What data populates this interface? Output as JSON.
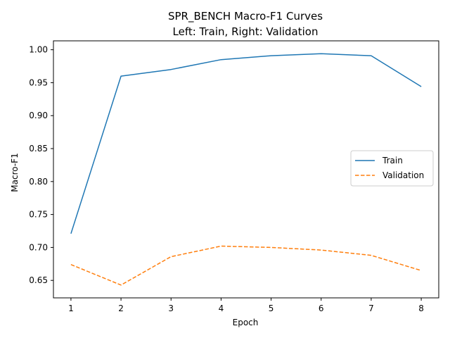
{
  "chart_data": {
    "type": "line",
    "title": "SPR_BENCH Macro-F1 Curves",
    "subtitle": "Left: Train, Right: Validation",
    "xlabel": "Epoch",
    "ylabel": "Macro-F1",
    "x": [
      1,
      2,
      3,
      4,
      5,
      6,
      7,
      8
    ],
    "xlim": [
      0.65,
      8.35
    ],
    "ylim": [
      0.6235,
      1.0135
    ],
    "xticks": [
      1,
      2,
      3,
      4,
      5,
      6,
      7,
      8
    ],
    "yticks": [
      0.65,
      0.7,
      0.75,
      0.8,
      0.85,
      0.9,
      0.95,
      1.0
    ],
    "grid": false,
    "legend_position": "center-right",
    "series": [
      {
        "name": "Train",
        "color": "#1f77b4",
        "style": "solid",
        "values": [
          0.721,
          0.96,
          0.97,
          0.985,
          0.991,
          0.994,
          0.991,
          0.944
        ]
      },
      {
        "name": "Validation",
        "color": "#ff7f0e",
        "style": "dashed",
        "values": [
          0.674,
          0.643,
          0.686,
          0.702,
          0.7,
          0.696,
          0.688,
          0.665
        ]
      }
    ]
  }
}
